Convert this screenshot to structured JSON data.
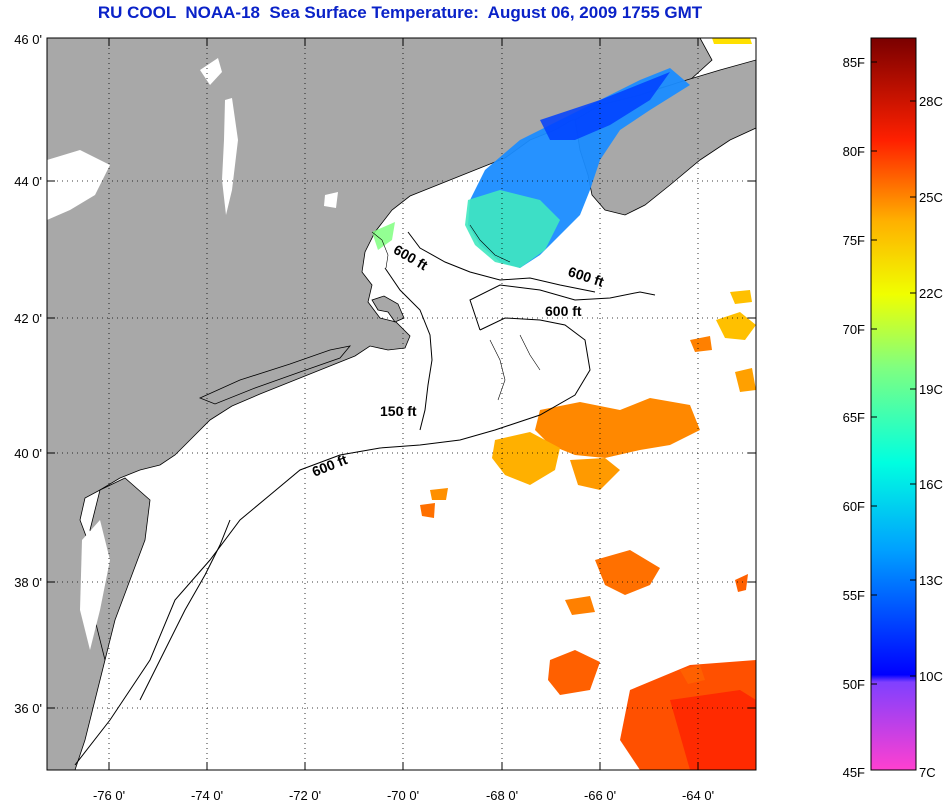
{
  "title": "RU COOL  NOAA-18  Sea Surface Temperature:  August 06, 2009 1755 GMT",
  "colors": {
    "title": "#0a22c8",
    "land": "#a8a8a8",
    "ocean": "#ffffff",
    "lakes": "#ffffff"
  },
  "map": {
    "lon_range": [
      -77,
      -63
    ],
    "lat_range": [
      35,
      46
    ],
    "x_ticks": [
      "-76 0'",
      "-74 0'",
      "-72 0'",
      "-70 0'",
      "-68 0'",
      "-66 0'",
      "-64 0'"
    ],
    "y_ticks": [
      "46 0'",
      "44 0'",
      "42 0'",
      "40 0'",
      "38 0'",
      "36 0'"
    ],
    "contour_labels": [
      "600 ft",
      "600 ft",
      "600 ft",
      "150 ft",
      "600 ft"
    ]
  },
  "colorbar": {
    "fahrenheit": [
      "85F",
      "80F",
      "75F",
      "70F",
      "65F",
      "60F",
      "55F",
      "50F",
      "45F"
    ],
    "celsius": [
      "28C",
      "25C",
      "22C",
      "19C",
      "16C",
      "13C",
      "10C",
      "7C"
    ]
  }
}
